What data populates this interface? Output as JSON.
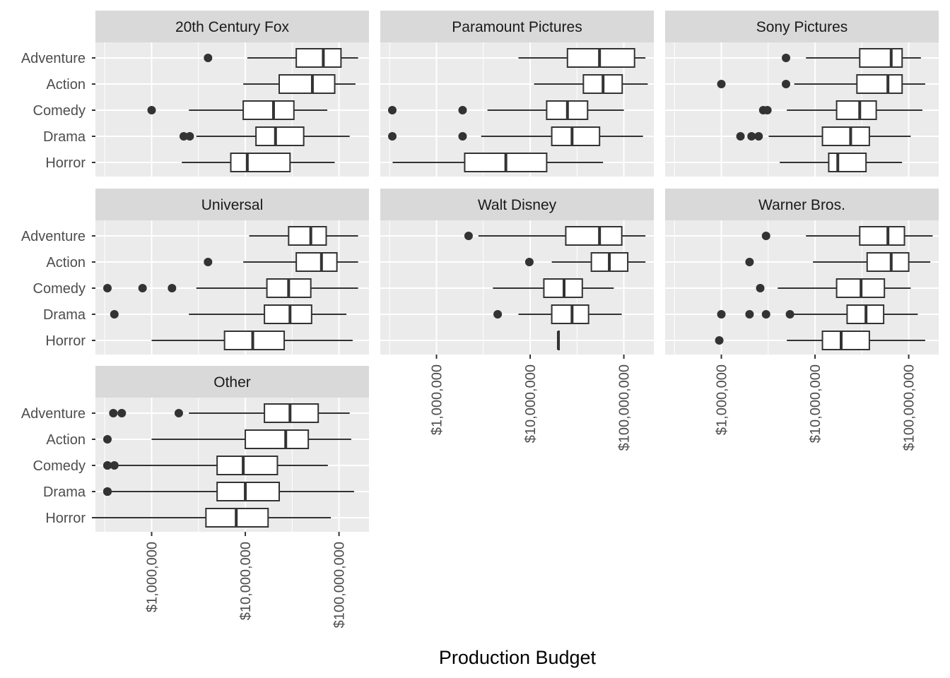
{
  "chart_data": {
    "type": "boxplot",
    "layout": "facet_wrap, 3 columns",
    "orientation": "horizontal",
    "xlabel": "Production Budget",
    "ylabel": "",
    "x_scale": "log10",
    "xlim": [
      250000,
      200000000
    ],
    "x_ticks": [
      1000000,
      10000000,
      100000000
    ],
    "x_tick_labels": [
      "$1,000,000",
      "$10,000,000",
      "$100,000,000"
    ],
    "categories": [
      "Adventure",
      "Action",
      "Comedy",
      "Drama",
      "Horror"
    ],
    "panel_background": "#ebebeb",
    "strip_background": "#d9d9d9",
    "grid": true,
    "facets": [
      {
        "name": "20th Century Fox",
        "boxes": [
          {
            "category": "Adventure",
            "whisker_low": 10500000,
            "q1": 35000000,
            "median": 68000000,
            "q3": 105000000,
            "whisker_high": 160000000,
            "outliers": [
              4000000
            ]
          },
          {
            "category": "Action",
            "whisker_low": 9500000,
            "q1": 23000000,
            "median": 52000000,
            "q3": 90000000,
            "whisker_high": 150000000,
            "outliers": []
          },
          {
            "category": "Comedy",
            "whisker_low": 2500000,
            "q1": 9500000,
            "median": 20000000,
            "q3": 33000000,
            "whisker_high": 75000000,
            "outliers": [
              1000000
            ]
          },
          {
            "category": "Drama",
            "whisker_low": 3000000,
            "q1": 13000000,
            "median": 21000000,
            "q3": 42000000,
            "whisker_high": 130000000,
            "outliers": [
              2200000,
              2550000
            ]
          },
          {
            "category": "Horror",
            "whisker_low": 2100000,
            "q1": 7000000,
            "median": 10500000,
            "q3": 30000000,
            "whisker_high": 90000000,
            "outliers": []
          }
        ]
      },
      {
        "name": "Paramount Pictures",
        "boxes": [
          {
            "category": "Adventure",
            "whisker_low": 7500000,
            "q1": 25000000,
            "median": 55000000,
            "q3": 130000000,
            "whisker_high": 170000000,
            "outliers": []
          },
          {
            "category": "Action",
            "whisker_low": 11000000,
            "q1": 37000000,
            "median": 60000000,
            "q3": 96000000,
            "whisker_high": 180000000,
            "outliers": []
          },
          {
            "category": "Comedy",
            "whisker_low": 3500000,
            "q1": 15000000,
            "median": 25000000,
            "q3": 41000000,
            "whisker_high": 100000000,
            "outliers": [
              250000,
              1900000
            ]
          },
          {
            "category": "Drama",
            "whisker_low": 3000000,
            "q1": 17000000,
            "median": 28000000,
            "q3": 55000000,
            "whisker_high": 160000000,
            "outliers": [
              100000,
              1900000
            ]
          },
          {
            "category": "Horror",
            "whisker_low": 340000,
            "q1": 2000000,
            "median": 5500000,
            "q3": 15000000,
            "whisker_high": 60000000,
            "outliers": []
          }
        ]
      },
      {
        "name": "Sony Pictures",
        "boxes": [
          {
            "category": "Adventure",
            "whisker_low": 8000000,
            "q1": 30000000,
            "median": 65000000,
            "q3": 85000000,
            "whisker_high": 135000000,
            "outliers": [
              4900000
            ]
          },
          {
            "category": "Action",
            "whisker_low": 6000000,
            "q1": 28000000,
            "median": 60000000,
            "q3": 85000000,
            "whisker_high": 150000000,
            "outliers": [
              1000000,
              4900000
            ]
          },
          {
            "category": "Comedy",
            "whisker_low": 5000000,
            "q1": 17000000,
            "median": 30000000,
            "q3": 45000000,
            "whisker_high": 140000000,
            "outliers": [
              2800000,
              3100000
            ]
          },
          {
            "category": "Drama",
            "whisker_low": 3200000,
            "q1": 12000000,
            "median": 24000000,
            "q3": 38000000,
            "whisker_high": 105000000,
            "outliers": [
              1600000,
              2100000,
              2500000
            ]
          },
          {
            "category": "Horror",
            "whisker_low": 4200000,
            "q1": 14000000,
            "median": 17500000,
            "q3": 35000000,
            "whisker_high": 85000000,
            "outliers": []
          }
        ]
      },
      {
        "name": "Universal",
        "boxes": [
          {
            "category": "Adventure",
            "whisker_low": 11000000,
            "q1": 29000000,
            "median": 50000000,
            "q3": 73000000,
            "whisker_high": 160000000,
            "outliers": []
          },
          {
            "category": "Action",
            "whisker_low": 9500000,
            "q1": 35000000,
            "median": 65000000,
            "q3": 95000000,
            "whisker_high": 160000000,
            "outliers": [
              4000000
            ]
          },
          {
            "category": "Comedy",
            "whisker_low": 3000000,
            "q1": 17000000,
            "median": 29000000,
            "q3": 50000000,
            "whisker_high": 160000000,
            "outliers": [
              290000,
              800000,
              1650000
            ]
          },
          {
            "category": "Drama",
            "whisker_low": 2500000,
            "q1": 16000000,
            "median": 30000000,
            "q3": 51000000,
            "whisker_high": 120000000,
            "outliers": [
              400000
            ]
          },
          {
            "category": "Horror",
            "whisker_low": 1000000,
            "q1": 6000000,
            "median": 12000000,
            "q3": 26000000,
            "whisker_high": 140000000,
            "outliers": []
          }
        ]
      },
      {
        "name": "Walt Disney",
        "boxes": [
          {
            "category": "Adventure",
            "whisker_low": 2800000,
            "q1": 24000000,
            "median": 55000000,
            "q3": 95000000,
            "whisker_high": 170000000,
            "outliers": [
              2200000
            ]
          },
          {
            "category": "Action",
            "whisker_low": 17000000,
            "q1": 45000000,
            "median": 70000000,
            "q3": 110000000,
            "whisker_high": 170000000,
            "outliers": [
              9800000
            ]
          },
          {
            "category": "Comedy",
            "whisker_low": 4000000,
            "q1": 14000000,
            "median": 23000000,
            "q3": 36000000,
            "whisker_high": 78000000,
            "outliers": []
          },
          {
            "category": "Drama",
            "whisker_low": 7500000,
            "q1": 17000000,
            "median": 28000000,
            "q3": 42000000,
            "whisker_high": 95000000,
            "outliers": [
              4500000
            ]
          },
          {
            "category": "Horror",
            "whisker_low": 20000000,
            "q1": 20000000,
            "median": 20000000,
            "q3": 20000000,
            "whisker_high": 20000000,
            "outliers": []
          }
        ]
      },
      {
        "name": "Warner Bros.",
        "boxes": [
          {
            "category": "Adventure",
            "whisker_low": 8000000,
            "q1": 30000000,
            "median": 60000000,
            "q3": 90000000,
            "whisker_high": 180000000,
            "outliers": [
              3000000
            ]
          },
          {
            "category": "Action",
            "whisker_low": 9500000,
            "q1": 36000000,
            "median": 65000000,
            "q3": 100000000,
            "whisker_high": 170000000,
            "outliers": [
              2000000
            ]
          },
          {
            "category": "Comedy",
            "whisker_low": 4000000,
            "q1": 17000000,
            "median": 31000000,
            "q3": 55000000,
            "whisker_high": 105000000,
            "outliers": [
              2600000
            ]
          },
          {
            "category": "Drama",
            "whisker_low": 5500000,
            "q1": 22000000,
            "median": 35000000,
            "q3": 54000000,
            "whisker_high": 125000000,
            "outliers": [
              1000000,
              2000000,
              3000000,
              5400000
            ]
          },
          {
            "category": "Horror",
            "whisker_low": 5000000,
            "q1": 12000000,
            "median": 19000000,
            "q3": 38000000,
            "whisker_high": 150000000,
            "outliers": [
              950000
            ]
          }
        ]
      },
      {
        "name": "Other",
        "boxes": [
          {
            "category": "Adventure",
            "whisker_low": 2500000,
            "q1": 16000000,
            "median": 30000000,
            "q3": 60000000,
            "whisker_high": 130000000,
            "outliers": [
              390000,
              480000,
              1950000
            ]
          },
          {
            "category": "Action",
            "whisker_low": 1000000,
            "q1": 10000000,
            "median": 27000000,
            "q3": 47000000,
            "whisker_high": 135000000,
            "outliers": [
              240000
            ]
          },
          {
            "category": "Comedy",
            "whisker_low": 400000,
            "q1": 5000000,
            "median": 9500000,
            "q3": 22000000,
            "whisker_high": 76000000,
            "outliers": [
              240000,
              290000,
              400000
            ]
          },
          {
            "category": "Drama",
            "whisker_low": 350000,
            "q1": 5000000,
            "median": 10000000,
            "q3": 23000000,
            "whisker_high": 145000000,
            "outliers": [
              240000,
              260000,
              280000,
              300000
            ]
          },
          {
            "category": "Horror",
            "whisker_low": 250000,
            "q1": 3800000,
            "median": 8000000,
            "q3": 17500000,
            "whisker_high": 82000000,
            "outliers": []
          }
        ]
      }
    ]
  }
}
